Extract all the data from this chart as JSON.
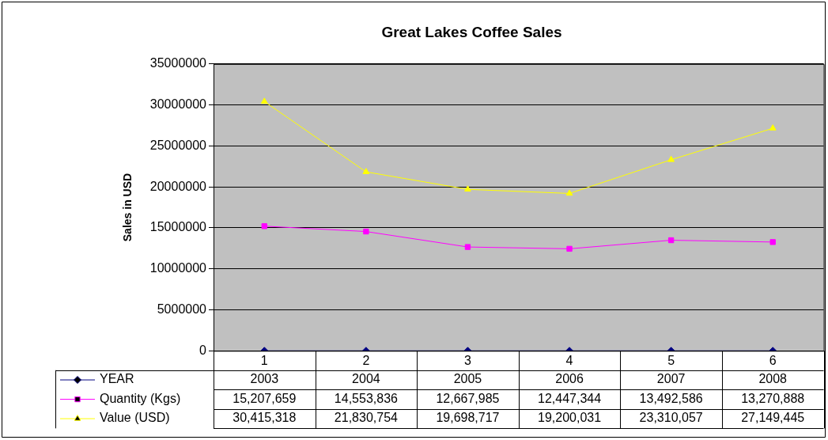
{
  "chart_data": {
    "type": "line",
    "title": "Great Lakes Coffee Sales",
    "ylabel": "Sales in USD",
    "categories": [
      "1",
      "2",
      "3",
      "4",
      "5",
      "6"
    ],
    "series": [
      {
        "name": "YEAR",
        "color": "#000080",
        "marker": "diamond",
        "values": [
          2003,
          2004,
          2005,
          2006,
          2007,
          2008
        ],
        "value_labels": [
          "2003",
          "2004",
          "2005",
          "2006",
          "2007",
          "2008"
        ]
      },
      {
        "name": "Quantity (Kgs)",
        "color": "#ff00ff",
        "marker": "square",
        "values": [
          15207659,
          14553836,
          12667985,
          12447344,
          13492586,
          13270888
        ],
        "value_labels": [
          "15,207,659",
          "14,553,836",
          "12,667,985",
          "12,447,344",
          "13,492,586",
          "13,270,888"
        ]
      },
      {
        "name": "Value (USD)",
        "color": "#ffff00",
        "marker": "triangle",
        "values": [
          30415318,
          21830754,
          19698717,
          19200031,
          23310057,
          27149445
        ],
        "value_labels": [
          "30,415,318",
          "21,830,754",
          "19,698,717",
          "19,200,031",
          "23,310,057",
          "27,149,445"
        ]
      }
    ],
    "ylim": [
      0,
      35000000
    ],
    "yticks": [
      0,
      5000000,
      10000000,
      15000000,
      20000000,
      25000000,
      30000000,
      35000000
    ],
    "grid": "y",
    "legend": "bottom"
  }
}
